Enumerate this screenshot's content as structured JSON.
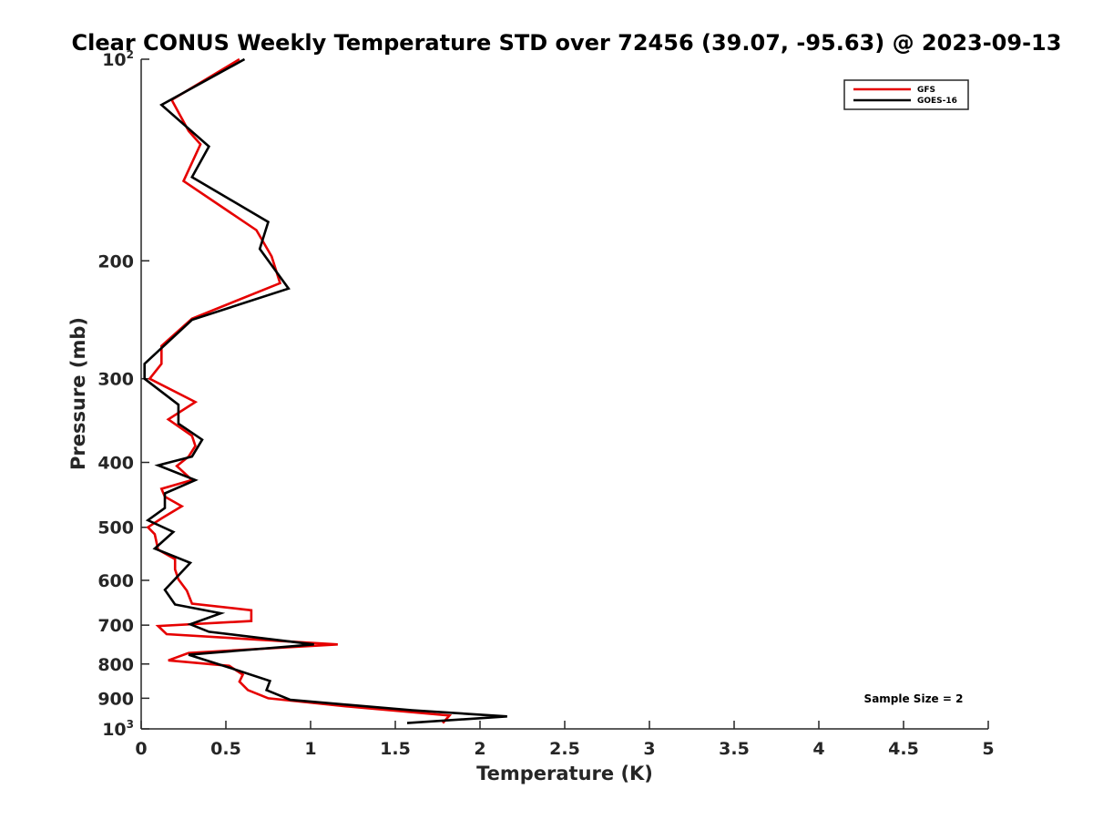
{
  "chart_data": {
    "type": "line",
    "title": "Clear CONUS Weekly Temperature STD over 72456 (39.07, -95.63) @ 2023-09-13",
    "xlabel": "Temperature (K)",
    "ylabel": "Pressure (mb)",
    "xlim": [
      0,
      5
    ],
    "ylim": [
      1000,
      100
    ],
    "y_scale": "log",
    "y_reversed": true,
    "grid": false,
    "legend_position": "top-right",
    "x_ticks": [
      "0",
      "0.5",
      "1",
      "1.5",
      "2",
      "2.5",
      "3",
      "3.5",
      "4",
      "4.5",
      "5"
    ],
    "y_ticks": [
      {
        "value": 100,
        "base": "10",
        "exp": "2"
      },
      {
        "value": 200,
        "label": "200"
      },
      {
        "value": 300,
        "label": "300"
      },
      {
        "value": 400,
        "label": "400"
      },
      {
        "value": 500,
        "label": "500"
      },
      {
        "value": 600,
        "label": "600"
      },
      {
        "value": 700,
        "label": "700"
      },
      {
        "value": 800,
        "label": "800"
      },
      {
        "value": 900,
        "label": "900"
      },
      {
        "value": 1000,
        "base": "10",
        "exp": "3"
      }
    ],
    "series": [
      {
        "name": "GFS",
        "color": "#e60000",
        "points": [
          [
            0.58,
            100
          ],
          [
            0.18,
            115
          ],
          [
            0.28,
            128
          ],
          [
            0.35,
            134
          ],
          [
            0.25,
            152
          ],
          [
            0.68,
            180
          ],
          [
            0.77,
            197
          ],
          [
            0.82,
            216
          ],
          [
            0.3,
            244
          ],
          [
            0.12,
            268
          ],
          [
            0.12,
            285
          ],
          [
            0.05,
            300
          ],
          [
            0.32,
            325
          ],
          [
            0.16,
            345
          ],
          [
            0.3,
            365
          ],
          [
            0.32,
            378
          ],
          [
            0.28,
            392
          ],
          [
            0.21,
            405
          ],
          [
            0.3,
            425
          ],
          [
            0.12,
            438
          ],
          [
            0.14,
            450
          ],
          [
            0.24,
            465
          ],
          [
            0.12,
            485
          ],
          [
            0.04,
            500
          ],
          [
            0.08,
            512
          ],
          [
            0.1,
            540
          ],
          [
            0.2,
            558
          ],
          [
            0.2,
            578
          ],
          [
            0.22,
            598
          ],
          [
            0.27,
            622
          ],
          [
            0.3,
            650
          ],
          [
            0.65,
            665
          ],
          [
            0.65,
            690
          ],
          [
            0.1,
            702
          ],
          [
            0.15,
            722
          ],
          [
            1.16,
            748
          ],
          [
            0.28,
            770
          ],
          [
            0.16,
            790
          ],
          [
            0.52,
            805
          ],
          [
            0.6,
            830
          ],
          [
            0.58,
            850
          ],
          [
            0.63,
            875
          ],
          [
            0.75,
            900
          ],
          [
            1.2,
            925
          ],
          [
            1.82,
            955
          ],
          [
            1.78,
            980
          ]
        ]
      },
      {
        "name": "GOES-16",
        "color": "#000000",
        "points": [
          [
            0.61,
            100
          ],
          [
            0.12,
            117
          ],
          [
            0.4,
            135
          ],
          [
            0.3,
            150
          ],
          [
            0.75,
            175
          ],
          [
            0.7,
            192
          ],
          [
            0.87,
            220
          ],
          [
            0.3,
            245
          ],
          [
            0.02,
            285
          ],
          [
            0.02,
            300
          ],
          [
            0.22,
            328
          ],
          [
            0.22,
            350
          ],
          [
            0.36,
            370
          ],
          [
            0.3,
            392
          ],
          [
            0.1,
            404
          ],
          [
            0.32,
            425
          ],
          [
            0.14,
            445
          ],
          [
            0.14,
            468
          ],
          [
            0.04,
            488
          ],
          [
            0.19,
            508
          ],
          [
            0.08,
            538
          ],
          [
            0.29,
            565
          ],
          [
            0.14,
            620
          ],
          [
            0.2,
            652
          ],
          [
            0.47,
            672
          ],
          [
            0.29,
            698
          ],
          [
            0.4,
            716
          ],
          [
            1.02,
            748
          ],
          [
            0.28,
            775
          ],
          [
            0.52,
            810
          ],
          [
            0.76,
            848
          ],
          [
            0.74,
            875
          ],
          [
            0.88,
            905
          ],
          [
            1.6,
            938
          ],
          [
            2.16,
            958
          ],
          [
            1.57,
            980
          ]
        ]
      }
    ],
    "legend": [
      {
        "label": "GFS",
        "color": "#e60000"
      },
      {
        "label": "GOES-16",
        "color": "#000000"
      }
    ],
    "annotation": "Sample Size = 2"
  }
}
